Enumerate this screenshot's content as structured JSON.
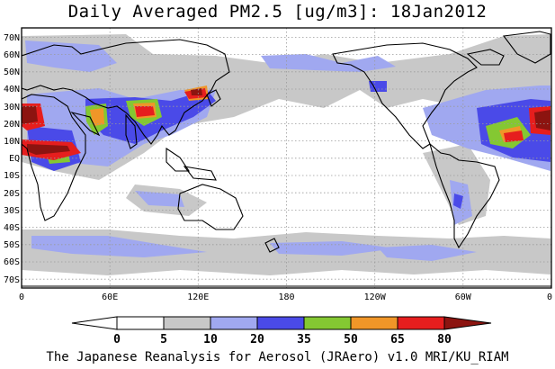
{
  "title": "Daily Averaged PM2.5 [ug/m3]: 18Jan2012",
  "credit": "The Japanese Reanalysis for Aerosol (JRAero) v1.0 MRI/KU_RIAM",
  "lat_labels": [
    "70N",
    "60N",
    "50N",
    "40N",
    "30N",
    "20N",
    "10N",
    "EQ",
    "10S",
    "20S",
    "30S",
    "40S",
    "50S",
    "60S",
    "70S"
  ],
  "lon_labels": [
    "0",
    "60E",
    "120E",
    "180",
    "120W",
    "60W",
    "0"
  ],
  "colorbar": {
    "labels": [
      "0",
      "5",
      "10",
      "20",
      "35",
      "50",
      "65",
      "80"
    ],
    "colors": [
      "#ffffff",
      "#c8c8c8",
      "#a0a8f0",
      "#4a4ae8",
      "#84c832",
      "#f09628",
      "#e61e1e",
      "#8c1410"
    ]
  },
  "chart_data": {
    "type": "heatmap",
    "title": "Daily Averaged PM2.5 [ug/m3]: 18Jan2012",
    "units": "ug/m3",
    "date": "18Jan2012",
    "xrange": [
      0,
      360
    ],
    "yrange": [
      -75,
      75
    ],
    "grid": true,
    "levels": [
      0,
      5,
      10,
      20,
      35,
      50,
      65,
      80
    ]
  }
}
